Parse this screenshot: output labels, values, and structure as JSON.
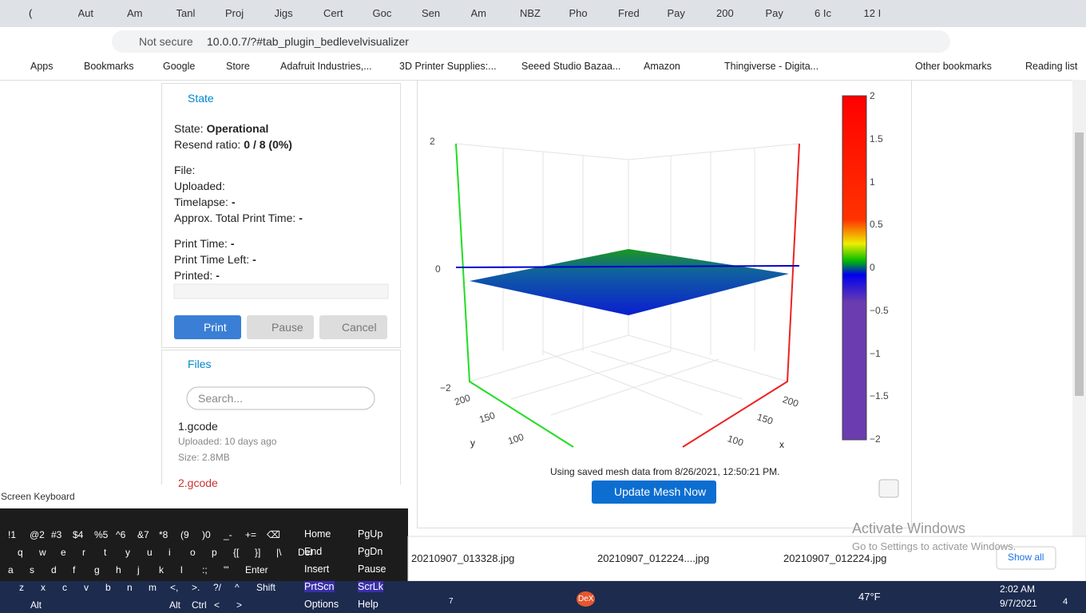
{
  "browser": {
    "tabs": [
      "(",
      "Aut",
      "Am",
      "Tanl",
      "Proj",
      "Jigs",
      "Cert",
      "Goc",
      "Sen",
      "Am",
      "NBZ",
      "Pho",
      "Fred",
      "Pay",
      "200",
      "Pay",
      "6 Ic",
      "12 I"
    ],
    "security": "Not secure",
    "url": "10.0.0.7/?#tab_plugin_bedlevelvisualizer",
    "bookmarks": [
      "Apps",
      "Bookmarks",
      "Google",
      "Store",
      "Adafruit Industries,...",
      "3D Printer Supplies:...",
      "Seeed Studio Bazaa...",
      "Amazon",
      "Thingiverse - Digita..."
    ],
    "other_bookmarks": "Other bookmarks",
    "reading_list": "Reading list"
  },
  "state": {
    "title": "State",
    "rows": [
      {
        "label": "State:",
        "value": "Operational"
      },
      {
        "label": "Resend ratio:",
        "value": "0 / 8 (0%)"
      },
      {
        "label": "File:"
      },
      {
        "label": "Uploaded:"
      },
      {
        "label": "Timelapse:",
        "value": "-"
      },
      {
        "label": "Approx. Total Print Time:",
        "value": "-"
      },
      {
        "label": "Print Time:",
        "value": "-"
      },
      {
        "label": "Print Time Left:",
        "value": "-"
      },
      {
        "label": "Printed:",
        "value": "-"
      }
    ],
    "buttons": [
      "Print",
      "Pause",
      "Cancel"
    ]
  },
  "files": {
    "title": "Files",
    "search": "Search...",
    "items": [
      {
        "name": "1.gcode",
        "uploaded": "Uploaded: 10 days ago",
        "size": "Size: 2.8MB"
      },
      {
        "name": "2.gcode"
      }
    ]
  },
  "plot": {
    "z_ticks": [
      "2",
      "0",
      "−2"
    ],
    "y_ticks": [
      "200",
      "150",
      "100"
    ],
    "y_label": "y",
    "x_ticks": [
      "200",
      "150",
      "100"
    ],
    "x_label": "x",
    "colorbar_ticks": [
      "2",
      "1.5",
      "1",
      "0.5",
      "0",
      "−0.5",
      "−1",
      "−1.5",
      "−2"
    ],
    "caption": "Using saved mesh data from 8/26/2021, 12:50:21 PM.",
    "button": "Update Mesh Now"
  },
  "keyboard": {
    "title": "Screen Keyboard",
    "rows": [
      [
        "!1",
        "@2",
        "#3",
        "$4",
        "%5",
        "^6",
        "&7",
        "*8",
        "(9",
        ")0",
        "_-",
        "+=",
        "⌫"
      ],
      [
        "q",
        "w",
        "e",
        "r",
        "t",
        "y",
        "u",
        "i",
        "o",
        "p",
        "{[",
        "}]",
        "|\\",
        "Del"
      ],
      [
        "a",
        "s",
        "d",
        "f",
        "g",
        "h",
        "j",
        "k",
        "l",
        ":;",
        "\"'",
        "Enter"
      ],
      [
        "z",
        "x",
        "c",
        "v",
        "b",
        "n",
        "m",
        "<,",
        ">.",
        "?/",
        "^",
        "Shift"
      ],
      [
        "Alt",
        "Alt",
        "Ctrl",
        "<",
        ">"
      ]
    ],
    "nav": [
      [
        "Home",
        "PgUp"
      ],
      [
        "End",
        "PgDn"
      ],
      [
        "Insert",
        "Pause"
      ],
      [
        "PrtScn",
        "ScrLk"
      ],
      [
        "Options",
        "Help"
      ]
    ]
  },
  "watermark": {
    "title": "Activate Windows",
    "subtitle": "Go to Settings to activate Windows."
  },
  "downloads": {
    "items": [
      "20210907_013328.jpg",
      "20210907_012224....jpg",
      "20210907_012224.jpg"
    ],
    "show_all": "Show all"
  },
  "taskbar": {
    "badge": "7",
    "app_label": "DeX",
    "temperature": "47°F",
    "time": "2:02 AM",
    "date": "9/7/2021",
    "notifications": "4"
  }
}
